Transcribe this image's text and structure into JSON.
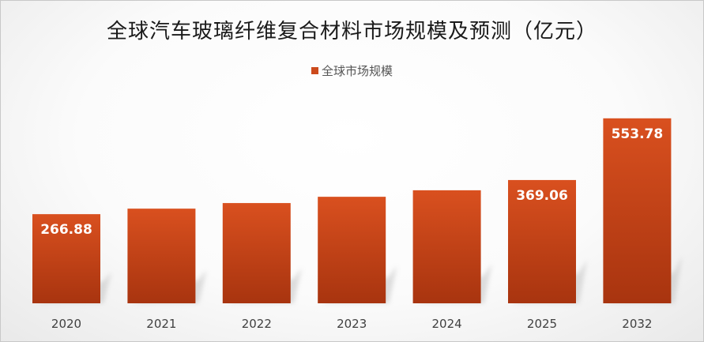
{
  "chart_data": {
    "type": "bar",
    "title": "全球汽车玻璃纤维复合材料市场规模及预测（亿元）",
    "xlabel": "",
    "ylabel": "",
    "categories": [
      "2020",
      "2021",
      "2022",
      "2023",
      "2024",
      "2025",
      "2032"
    ],
    "series": [
      {
        "name": "全球市场规模",
        "values": [
          266.88,
          283.4,
          300.1,
          318.9,
          338.4,
          369.06,
          553.78
        ],
        "data_labels": [
          "266.88",
          "",
          "",
          "",
          "",
          "369.06",
          "553.78"
        ]
      }
    ],
    "ylim": [
      0,
      600
    ],
    "grid": false,
    "legend_position": "top-center",
    "colors": {
      "bar_top": "#d9501f",
      "bar_bottom": "#a8340f",
      "shadow": "#c4c4c4"
    }
  }
}
